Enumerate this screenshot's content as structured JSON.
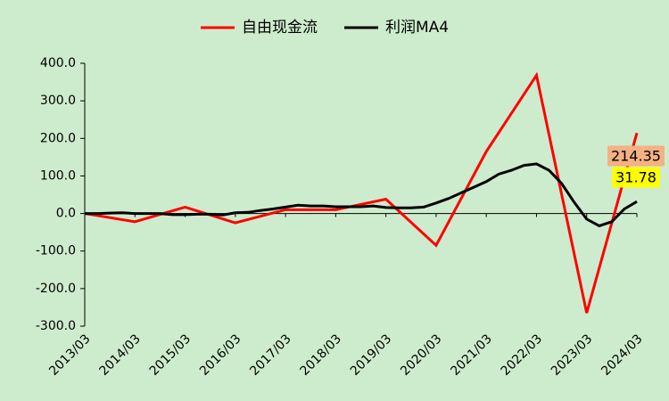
{
  "chart_data": {
    "type": "line",
    "categories": [
      "2013/03",
      null,
      null,
      null,
      "2014/03",
      null,
      null,
      null,
      "2015/03",
      null,
      null,
      null,
      "2016/03",
      null,
      null,
      null,
      "2017/03",
      null,
      null,
      null,
      "2018/03",
      null,
      null,
      null,
      "2019/03",
      null,
      null,
      null,
      "2020/03",
      null,
      null,
      null,
      "2021/03",
      null,
      null,
      null,
      "2022/03",
      null,
      null,
      null,
      "2023/03",
      null,
      null,
      null,
      "2024/03"
    ],
    "series": [
      {
        "name": "自由现金流",
        "color": "#ff0000",
        "spanGaps": true,
        "label_last": true,
        "label_bg": "#f4b183",
        "values": [
          0,
          null,
          null,
          null,
          -22,
          null,
          null,
          null,
          17,
          null,
          null,
          null,
          -25,
          null,
          null,
          null,
          10,
          null,
          null,
          null,
          10,
          null,
          null,
          null,
          38,
          null,
          null,
          null,
          -85,
          null,
          null,
          null,
          165,
          null,
          null,
          null,
          368,
          null,
          null,
          null,
          -265,
          null,
          null,
          null,
          214.35
        ]
      },
      {
        "name": "利润MA4",
        "color": "#000000",
        "spanGaps": false,
        "label_last": true,
        "label_bg": "#ffff00",
        "values": [
          0,
          0,
          1,
          2,
          0,
          0,
          0,
          -3,
          -3,
          -2,
          -2,
          -4,
          2,
          3,
          8,
          12,
          17,
          22,
          20,
          20,
          18,
          18,
          18,
          20,
          16,
          15,
          15,
          17,
          28,
          40,
          55,
          70,
          85,
          105,
          115,
          128,
          132,
          115,
          80,
          30,
          -15,
          -33,
          -22,
          12,
          31.78
        ]
      }
    ],
    "ylim": [
      -300,
      400
    ],
    "yticks": [
      {
        "value": -300,
        "label": "-300.0"
      },
      {
        "value": -200,
        "label": "-200.0"
      },
      {
        "value": -100,
        "label": "-100.0"
      },
      {
        "value": 0,
        "label": "0.0"
      },
      {
        "value": 100,
        "label": "100.0"
      },
      {
        "value": 200,
        "label": "200.0"
      },
      {
        "value": 300,
        "label": "300.0"
      },
      {
        "value": 400,
        "label": "400.0"
      }
    ],
    "grid": false,
    "legend": "top"
  }
}
